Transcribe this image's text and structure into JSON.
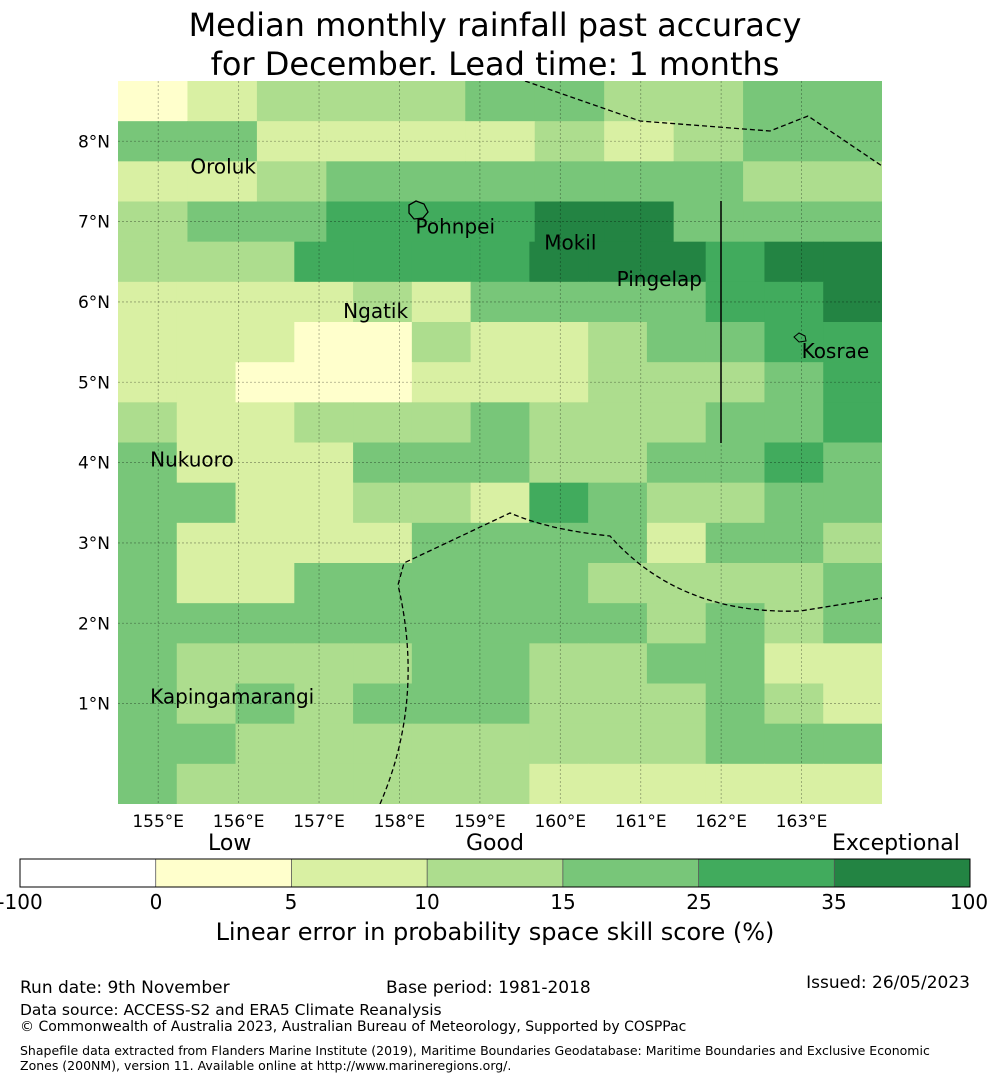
{
  "title": {
    "line1": "Median monthly rainfall past accuracy",
    "line2": "for December. Lead time: 1 months"
  },
  "map": {
    "lat_range": [
      -0.25,
      8.75
    ],
    "lon_range": [
      154.5,
      164.0
    ],
    "lat_ticks": [
      "1°N",
      "2°N",
      "3°N",
      "4°N",
      "5°N",
      "6°N",
      "7°N",
      "8°N"
    ],
    "lon_ticks": [
      "155°E",
      "156°E",
      "157°E",
      "158°E",
      "159°E",
      "160°E",
      "161°E",
      "162°E",
      "163°E"
    ],
    "grid_cells": [
      "12333443344",
      "44222232344",
      "22344444433",
      "34455566444",
      "3335555666566",
      "2222324444556",
      "2221132234455",
      "2211122233345",
      "3223334333445",
      "4222444334454",
      "4422332543344",
      "4222244442443",
      "4224444433334",
      "4444444443434",
      "4333344334422",
      "4343444333432",
      "4433333333444",
      "4333333222222"
    ],
    "places": [
      {
        "name": "Oroluk",
        "lon": 155.4,
        "lat": 7.6
      },
      {
        "name": "Pohnpei",
        "lon": 158.2,
        "lat": 6.85
      },
      {
        "name": "Mokil",
        "lon": 159.8,
        "lat": 6.65
      },
      {
        "name": "Pingelap",
        "lon": 160.7,
        "lat": 6.2
      },
      {
        "name": "Ngatik",
        "lon": 157.3,
        "lat": 5.8
      },
      {
        "name": "Kosrae",
        "lon": 163.0,
        "lat": 5.3
      },
      {
        "name": "Nukuoro",
        "lon": 154.9,
        "lat": 3.95
      },
      {
        "name": "Kapingamarangi",
        "lon": 154.9,
        "lat": 1.0
      }
    ]
  },
  "colorbar": {
    "colors": [
      "#ffffff",
      "#ffffcc",
      "#d9f0a3",
      "#addd8e",
      "#78c679",
      "#41ab5d",
      "#238443"
    ],
    "ticks": [
      "-100",
      "0",
      "5",
      "10",
      "15",
      "25",
      "35",
      "100"
    ],
    "category_low": "Low",
    "category_good": "Good",
    "category_exceptional": "Exceptional",
    "label": "Linear error in probability space skill score (%)"
  },
  "footer": {
    "run_date": "Run date: 9th November",
    "base_period": "Base period: 1981-2018",
    "issued": "Issued: 26/05/2023",
    "data_source": "Data source: ACCESS-S2 and ERA5 Climate Reanalysis",
    "copyright": "© Commonwealth of Australia 2023, Australian Bureau of Meteorology, Supported by COSPPac",
    "shapefile": "Shapefile data extracted from Flanders Marine Institute (2019), Maritime Boundaries Geodatabase: Maritime Boundaries and Exclusive Economic Zones (200NM), version 11. Available online at http://www.marineregions.org/."
  }
}
